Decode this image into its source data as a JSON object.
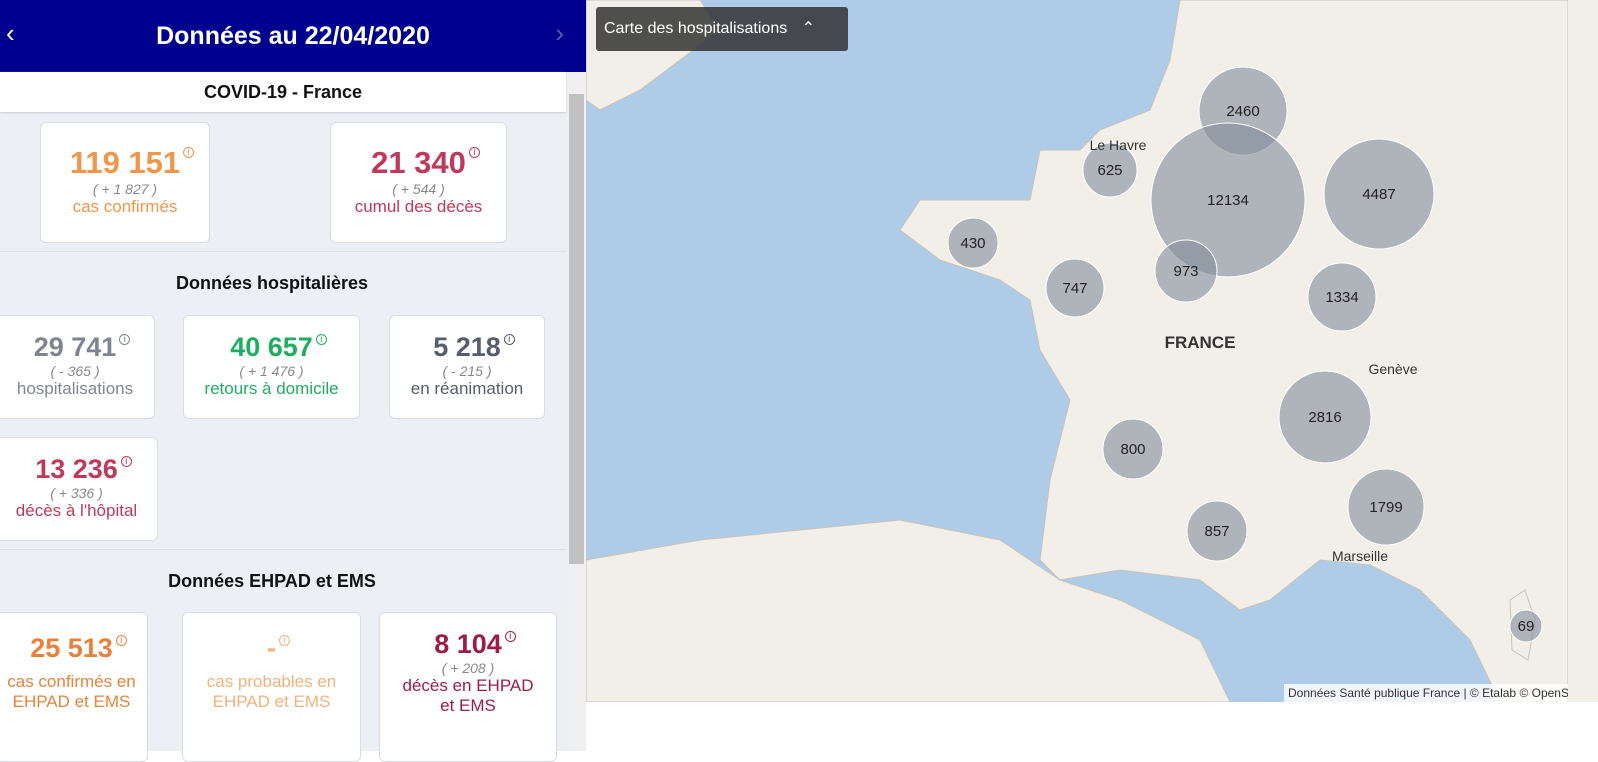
{
  "header": {
    "title": "Données au 22/04/2020",
    "prev_icon": "chevron-left-icon",
    "next_icon": "chevron-right-icon"
  },
  "colors": {
    "header_bg": "#00008f",
    "orange": "#f0964a",
    "red": "#c0395a",
    "gray": "#7e8590",
    "green": "#1fae5f",
    "dark": "#555e6b",
    "ehpad_orange": "#e8823a",
    "ehpad_light": "#f0b27a",
    "ehpad_red": "#9b1d46"
  },
  "france": {
    "title": "COVID-19 - France",
    "cards": [
      {
        "value": "119 151",
        "delta": "( + 1 827 )",
        "label": "cas confirmés"
      },
      {
        "value": "21 340",
        "delta": "( + 544 )",
        "label": "cumul des décès"
      }
    ]
  },
  "hospital": {
    "title": "Données hospitalières",
    "cards": [
      {
        "value": "29 741",
        "delta": "( - 365 )",
        "label": "hospitalisations"
      },
      {
        "value": "40 657",
        "delta": "( + 1 476 )",
        "label": "retours à domicile"
      },
      {
        "value": "5 218",
        "delta": "( - 215 )",
        "label": "en réanimation"
      },
      {
        "value": "13 236",
        "delta": "( + 336 )",
        "label": "décès à l'hôpital"
      }
    ]
  },
  "ehpad": {
    "title": "Données EHPAD et EMS",
    "cards": [
      {
        "value": "25 513",
        "label1": "cas confirmés en",
        "label2": "EHPAD et EMS"
      },
      {
        "value": "-",
        "label1": "cas probables en",
        "label2": "EHPAD et EMS"
      },
      {
        "value": "8 104",
        "delta": "( + 208 )",
        "label1": "décès en EHPAD",
        "label2": "et EMS"
      }
    ]
  },
  "map": {
    "toggle_label": "Carte des hospitalisations",
    "toggle_icon": "chevron-up-icon",
    "attribution": "Données Santé publique France | © Etalab © OpenStreetMap",
    "places": [
      "Le Havre",
      "FRANCE",
      "Genève",
      "Marseille"
    ],
    "clusters": [
      "2460",
      "625",
      "12134",
      "4487",
      "430",
      "747",
      "973",
      "1334",
      "2816",
      "800",
      "1799",
      "857",
      "69"
    ]
  }
}
